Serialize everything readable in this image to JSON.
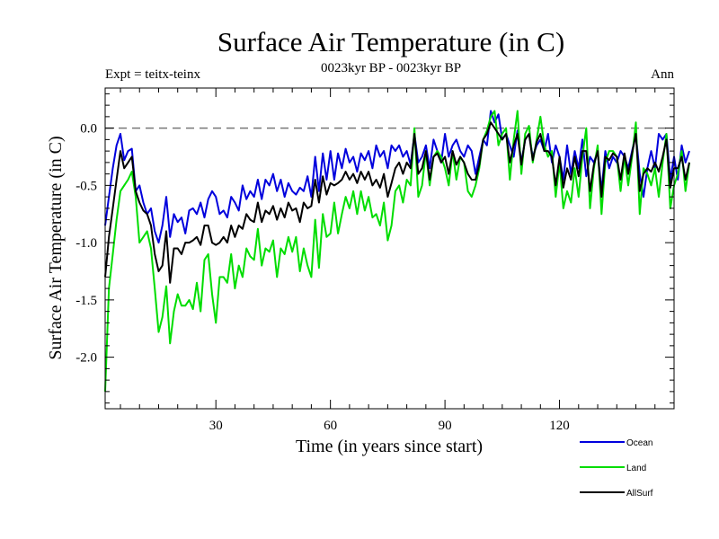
{
  "chart_data": {
    "type": "line",
    "title": "Surface Air Temperature (in C)",
    "subtitle": "0023kyr BP - 0023kyr BP",
    "left_label": "Expt = teitx-teinx",
    "right_label": "Ann",
    "xlabel": "Time (in years since start)",
    "ylabel": "Surface Air Temperature (in C)",
    "xlim": [
      1,
      150
    ],
    "ylim": [
      -2.45,
      0.35
    ],
    "x_ticks": [
      30,
      60,
      90,
      120
    ],
    "x_tick_labels": [
      "30",
      "60",
      "90",
      "120"
    ],
    "y_ticks": [
      0.0,
      -0.5,
      -1.0,
      -1.5,
      -2.0
    ],
    "y_tick_labels": [
      "0.0",
      "-0.5",
      "-1.0",
      "-1.5",
      "-2.0"
    ],
    "zero_line": true,
    "legend_position": "bottom-right",
    "series": [
      {
        "name": "Ocean",
        "color": "#0000dd",
        "values": [
          -0.85,
          -0.6,
          -0.35,
          -0.15,
          -0.05,
          -0.28,
          -0.2,
          -0.18,
          -0.55,
          -0.5,
          -0.65,
          -0.75,
          -0.7,
          -0.9,
          -1.0,
          -0.85,
          -0.6,
          -0.95,
          -0.75,
          -0.82,
          -0.78,
          -0.92,
          -0.72,
          -0.7,
          -0.75,
          -0.65,
          -0.78,
          -0.62,
          -0.55,
          -0.6,
          -0.75,
          -0.72,
          -0.78,
          -0.6,
          -0.65,
          -0.72,
          -0.5,
          -0.62,
          -0.55,
          -0.6,
          -0.45,
          -0.62,
          -0.45,
          -0.5,
          -0.4,
          -0.55,
          -0.45,
          -0.6,
          -0.48,
          -0.55,
          -0.58,
          -0.52,
          -0.55,
          -0.42,
          -0.6,
          -0.25,
          -0.55,
          -0.22,
          -0.45,
          -0.2,
          -0.45,
          -0.22,
          -0.35,
          -0.18,
          -0.3,
          -0.25,
          -0.38,
          -0.22,
          -0.28,
          -0.2,
          -0.35,
          -0.15,
          -0.25,
          -0.2,
          -0.35,
          -0.15,
          -0.2,
          -0.15,
          -0.25,
          -0.2,
          -0.32,
          -0.05,
          -0.3,
          -0.25,
          -0.15,
          -0.35,
          -0.1,
          -0.2,
          -0.3,
          -0.05,
          -0.25,
          -0.15,
          -0.1,
          -0.2,
          -0.25,
          -0.15,
          -0.2,
          -0.4,
          -0.25,
          -0.1,
          -0.15,
          0.15,
          0.05,
          0.12,
          -0.1,
          -0.05,
          -0.15,
          -0.25,
          -0.02,
          -0.3,
          -0.1,
          -0.05,
          -0.25,
          -0.15,
          -0.1,
          -0.2,
          -0.05,
          -0.3,
          -0.15,
          -0.25,
          -0.45,
          -0.15,
          -0.4,
          -0.2,
          -0.35,
          -0.1,
          -0.42,
          -0.25,
          -0.3,
          -0.2,
          -0.55,
          -0.2,
          -0.35,
          -0.25,
          -0.3,
          -0.2,
          -0.25,
          -0.35,
          -0.2,
          -0.05,
          -0.4,
          -0.6,
          -0.35,
          -0.2,
          -0.35,
          -0.05,
          -0.1,
          -0.05,
          -0.45,
          -0.25,
          -0.45,
          -0.15,
          -0.3,
          -0.2
        ]
      },
      {
        "name": "Land",
        "color": "#00dd00",
        "values": [
          -2.3,
          -1.4,
          -1.1,
          -0.8,
          -0.55,
          -0.5,
          -0.45,
          -0.38,
          -0.6,
          -1.0,
          -0.95,
          -0.9,
          -1.05,
          -1.4,
          -1.78,
          -1.65,
          -1.38,
          -1.88,
          -1.6,
          -1.45,
          -1.55,
          -1.55,
          -1.5,
          -1.58,
          -1.35,
          -1.6,
          -1.15,
          -1.1,
          -1.45,
          -1.7,
          -1.3,
          -1.3,
          -1.35,
          -1.1,
          -1.4,
          -1.2,
          -1.3,
          -1.05,
          -1.12,
          -1.15,
          -0.88,
          -1.2,
          -1.05,
          -1.08,
          -0.98,
          -1.3,
          -1.05,
          -1.1,
          -0.95,
          -1.08,
          -0.95,
          -1.25,
          -1.05,
          -1.2,
          -1.3,
          -0.8,
          -1.22,
          -0.75,
          -0.95,
          -0.92,
          -0.65,
          -0.92,
          -0.75,
          -0.6,
          -0.7,
          -0.55,
          -0.75,
          -0.55,
          -0.72,
          -0.6,
          -0.78,
          -0.75,
          -0.85,
          -0.65,
          -0.98,
          -0.85,
          -0.55,
          -0.5,
          -0.65,
          -0.45,
          -0.5,
          0.0,
          -0.6,
          -0.5,
          -0.2,
          -0.5,
          -0.25,
          -0.2,
          -0.25,
          -0.35,
          -0.5,
          -0.2,
          -0.45,
          -0.25,
          -0.3,
          -0.55,
          -0.6,
          -0.5,
          -0.35,
          -0.1,
          -0.02,
          0.1,
          0.15,
          -0.15,
          -0.05,
          0.0,
          -0.45,
          -0.1,
          0.15,
          -0.4,
          -0.05,
          0.02,
          -0.3,
          -0.1,
          0.1,
          -0.15,
          -0.25,
          -0.2,
          -0.6,
          -0.3,
          -0.7,
          -0.55,
          -0.65,
          -0.35,
          -0.6,
          -0.25,
          0.0,
          -0.7,
          -0.35,
          -0.15,
          -0.75,
          -0.3,
          -0.2,
          -0.2,
          -0.25,
          -0.55,
          -0.25,
          -0.5,
          -0.25,
          0.05,
          -0.75,
          -0.35,
          -0.4,
          -0.5,
          -0.35,
          -0.6,
          -0.3,
          -0.05,
          -0.7,
          -0.5,
          -0.4,
          -0.2,
          -0.55,
          -0.3
        ]
      },
      {
        "name": "AllSurf",
        "color": "#000000",
        "values": [
          -1.3,
          -0.95,
          -0.7,
          -0.45,
          -0.2,
          -0.35,
          -0.3,
          -0.25,
          -0.55,
          -0.65,
          -0.72,
          -0.75,
          -0.85,
          -1.1,
          -1.25,
          -1.2,
          -0.9,
          -1.35,
          -1.05,
          -1.05,
          -1.1,
          -1.0,
          -1.0,
          -0.98,
          -0.95,
          -1.02,
          -0.85,
          -0.85,
          -1.0,
          -1.02,
          -1.0,
          -0.95,
          -1.0,
          -0.85,
          -0.95,
          -0.85,
          -0.88,
          -0.75,
          -0.8,
          -0.82,
          -0.65,
          -0.82,
          -0.72,
          -0.75,
          -0.68,
          -0.8,
          -0.7,
          -0.78,
          -0.65,
          -0.72,
          -0.7,
          -0.82,
          -0.65,
          -0.7,
          -0.68,
          -0.45,
          -0.65,
          -0.42,
          -0.58,
          -0.48,
          -0.5,
          -0.48,
          -0.45,
          -0.38,
          -0.45,
          -0.4,
          -0.48,
          -0.38,
          -0.45,
          -0.38,
          -0.5,
          -0.45,
          -0.52,
          -0.4,
          -0.6,
          -0.48,
          -0.35,
          -0.3,
          -0.4,
          -0.3,
          -0.35,
          -0.05,
          -0.4,
          -0.35,
          -0.2,
          -0.45,
          -0.25,
          -0.22,
          -0.3,
          -0.25,
          -0.4,
          -0.2,
          -0.32,
          -0.25,
          -0.3,
          -0.4,
          -0.45,
          -0.45,
          -0.32,
          -0.1,
          -0.05,
          0.05,
          0.0,
          -0.05,
          -0.1,
          -0.05,
          -0.3,
          -0.15,
          -0.05,
          -0.32,
          -0.1,
          -0.05,
          -0.28,
          -0.12,
          -0.05,
          -0.2,
          -0.2,
          -0.25,
          -0.5,
          -0.25,
          -0.52,
          -0.35,
          -0.45,
          -0.25,
          -0.42,
          -0.2,
          -0.2,
          -0.55,
          -0.32,
          -0.2,
          -0.6,
          -0.25,
          -0.28,
          -0.22,
          -0.25,
          -0.45,
          -0.22,
          -0.4,
          -0.22,
          -0.05,
          -0.55,
          -0.4,
          -0.35,
          -0.38,
          -0.3,
          -0.38,
          -0.25,
          -0.1,
          -0.52,
          -0.35,
          -0.35,
          -0.25,
          -0.45,
          -0.3
        ]
      }
    ]
  }
}
